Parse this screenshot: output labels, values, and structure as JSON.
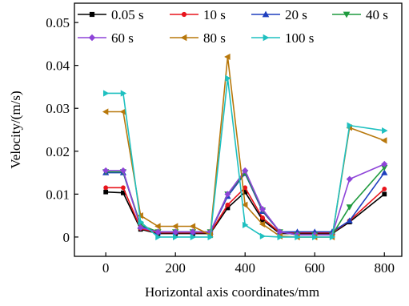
{
  "chart_data": {
    "type": "line",
    "xlabel": "Horizontal axis coordinates/mm",
    "ylabel": "Velocity/(m/s)",
    "xlim": [
      -90,
      850
    ],
    "ylim": [
      -0.0045,
      0.0545
    ],
    "x_ticks": [
      0,
      200,
      400,
      600,
      800
    ],
    "x_tick_labels": [
      "0",
      "200",
      "400",
      "600",
      "800"
    ],
    "y_ticks": [
      0,
      0.01,
      0.02,
      0.03,
      0.04,
      0.05
    ],
    "y_tick_labels": [
      "0",
      "0.01",
      "0.02",
      "0.03",
      "0.04",
      "0.05"
    ],
    "grid": false,
    "legend_position": "top",
    "x": [
      0,
      50,
      100,
      150,
      200,
      250,
      300,
      350,
      400,
      450,
      500,
      550,
      600,
      650,
      700,
      800
    ],
    "series": [
      {
        "name": "0.05 s",
        "color": "#000000",
        "marker": "square",
        "values": [
          0.0105,
          0.0103,
          0.0018,
          0.0008,
          0.0008,
          0.0008,
          0.0008,
          0.0068,
          0.0105,
          0.004,
          0.0008,
          0.0008,
          0.0008,
          0.0008,
          0.0035,
          0.01
        ]
      },
      {
        "name": "10 s",
        "color": "#e8141c",
        "marker": "circle",
        "values": [
          0.0115,
          0.0115,
          0.002,
          0.001,
          0.001,
          0.001,
          0.001,
          0.0075,
          0.0115,
          0.0045,
          0.001,
          0.001,
          0.001,
          0.001,
          0.0038,
          0.0112
        ]
      },
      {
        "name": "20 s",
        "color": "#1e3fbe",
        "marker": "triangle-up",
        "values": [
          0.015,
          0.015,
          0.0025,
          0.0012,
          0.0012,
          0.0012,
          0.0012,
          0.0095,
          0.0148,
          0.006,
          0.0012,
          0.0012,
          0.0012,
          0.0012,
          0.0038,
          0.015
        ]
      },
      {
        "name": "40 s",
        "color": "#1f9a3e",
        "marker": "triangle-down",
        "values": [
          0.0152,
          0.0152,
          0.0028,
          0.0012,
          0.0012,
          0.0012,
          0.0012,
          0.01,
          0.015,
          0.0063,
          0.0012,
          0.0005,
          0.0005,
          0.0005,
          0.007,
          0.0162
        ]
      },
      {
        "name": "60 s",
        "color": "#8e44d8",
        "marker": "diamond",
        "values": [
          0.0155,
          0.0155,
          0.0022,
          0.0012,
          0.0012,
          0.0012,
          0.0012,
          0.01,
          0.0155,
          0.0065,
          0.0012,
          0.0005,
          0.0005,
          0.0005,
          0.0135,
          0.017
        ]
      },
      {
        "name": "80 s",
        "color": "#b8780c",
        "marker": "triangle-left",
        "values": [
          0.0292,
          0.0292,
          0.005,
          0.0025,
          0.0025,
          0.0025,
          0.0005,
          0.042,
          0.0075,
          0.003,
          0.0002,
          0.0,
          0.0,
          0.0,
          0.0255,
          0.0225
        ]
      },
      {
        "name": "100 s",
        "color": "#1fc0c0",
        "marker": "triangle-right",
        "values": [
          0.0335,
          0.0335,
          0.0035,
          0.0,
          0.0,
          0.0,
          0.0,
          0.037,
          0.0028,
          0.0002,
          0.0,
          0.0,
          0.0,
          0.0,
          0.026,
          0.0248
        ]
      }
    ]
  }
}
